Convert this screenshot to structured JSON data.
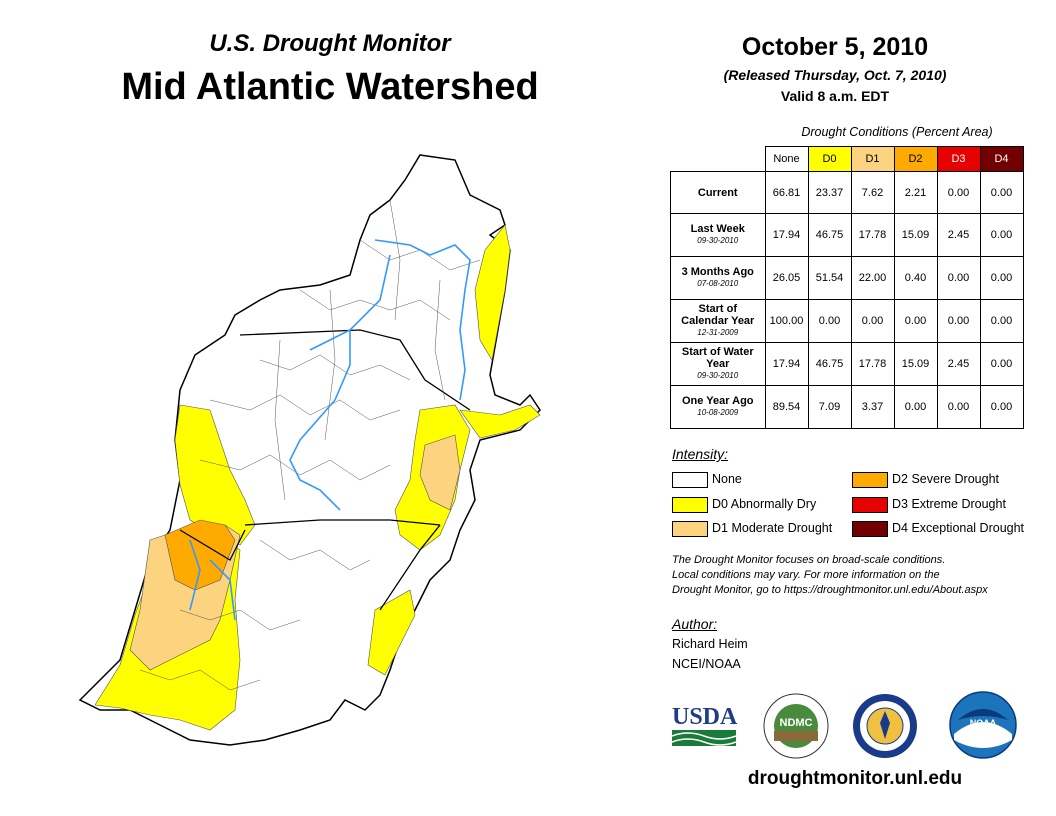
{
  "header": {
    "line1": "U.S. Drought Monitor",
    "line2": "Mid Atlantic Watershed",
    "date": "October 5, 2010",
    "released": "(Released Thursday, Oct. 7, 2010)",
    "valid": "Valid 8 a.m. EDT"
  },
  "table": {
    "caption": "Drought Conditions (Percent Area)",
    "columns": [
      {
        "label": "None",
        "color": "#ffffff"
      },
      {
        "label": "D0",
        "color": "#ffff00"
      },
      {
        "label": "D1",
        "color": "#fcd37f"
      },
      {
        "label": "D2",
        "color": "#ffaa00"
      },
      {
        "label": "D3",
        "color": "#e60000"
      },
      {
        "label": "D4",
        "color": "#730000"
      }
    ],
    "rows": [
      {
        "label": "Current",
        "sublabel": "",
        "values": [
          "66.81",
          "23.37",
          "7.62",
          "2.21",
          "0.00",
          "0.00"
        ]
      },
      {
        "label": "Last Week",
        "sublabel": "09-30-2010",
        "values": [
          "17.94",
          "46.75",
          "17.78",
          "15.09",
          "2.45",
          "0.00"
        ]
      },
      {
        "label": "3 Months Ago",
        "sublabel": "07-08-2010",
        "values": [
          "26.05",
          "51.54",
          "22.00",
          "0.40",
          "0.00",
          "0.00"
        ]
      },
      {
        "label": "Start of Calendar Year",
        "sublabel": "12-31-2009",
        "values": [
          "100.00",
          "0.00",
          "0.00",
          "0.00",
          "0.00",
          "0.00"
        ]
      },
      {
        "label": "Start of Water Year",
        "sublabel": "09-30-2010",
        "values": [
          "17.94",
          "46.75",
          "17.78",
          "15.09",
          "2.45",
          "0.00"
        ]
      },
      {
        "label": "One Year Ago",
        "sublabel": "10-08-2009",
        "values": [
          "89.54",
          "7.09",
          "3.37",
          "0.00",
          "0.00",
          "0.00"
        ]
      }
    ]
  },
  "legend": {
    "title": "Intensity:",
    "items": [
      {
        "label": "None",
        "color": "#ffffff"
      },
      {
        "label": "D0 Abnormally Dry",
        "color": "#ffff00"
      },
      {
        "label": "D1 Moderate Drought",
        "color": "#fcd37f"
      },
      {
        "label": "D2 Severe Drought",
        "color": "#ffaa00"
      },
      {
        "label": "D3 Extreme Drought",
        "color": "#e60000"
      },
      {
        "label": "D4 Exceptional Drought",
        "color": "#730000"
      }
    ]
  },
  "note": {
    "line1": "The Drought Monitor focuses on broad-scale conditions.",
    "line2": "Local conditions may vary. For more information on the",
    "line3": "Drought Monitor, go to https://droughtmonitor.unl.edu/About.aspx"
  },
  "author": {
    "label": "Author:",
    "name": "Richard Heim",
    "org": "NCEI/NOAA"
  },
  "logos": {
    "usda": "USDA",
    "ndmc": "NDMC",
    "noaa": "NOAA"
  },
  "footer": {
    "site": "droughtmonitor.unl.edu"
  },
  "map": {
    "colors": {
      "none": "#ffffff",
      "d0": "#ffff00",
      "d1": "#fcd37f",
      "d2": "#ffaa00",
      "river": "#3399ff",
      "border": "#000000"
    }
  }
}
